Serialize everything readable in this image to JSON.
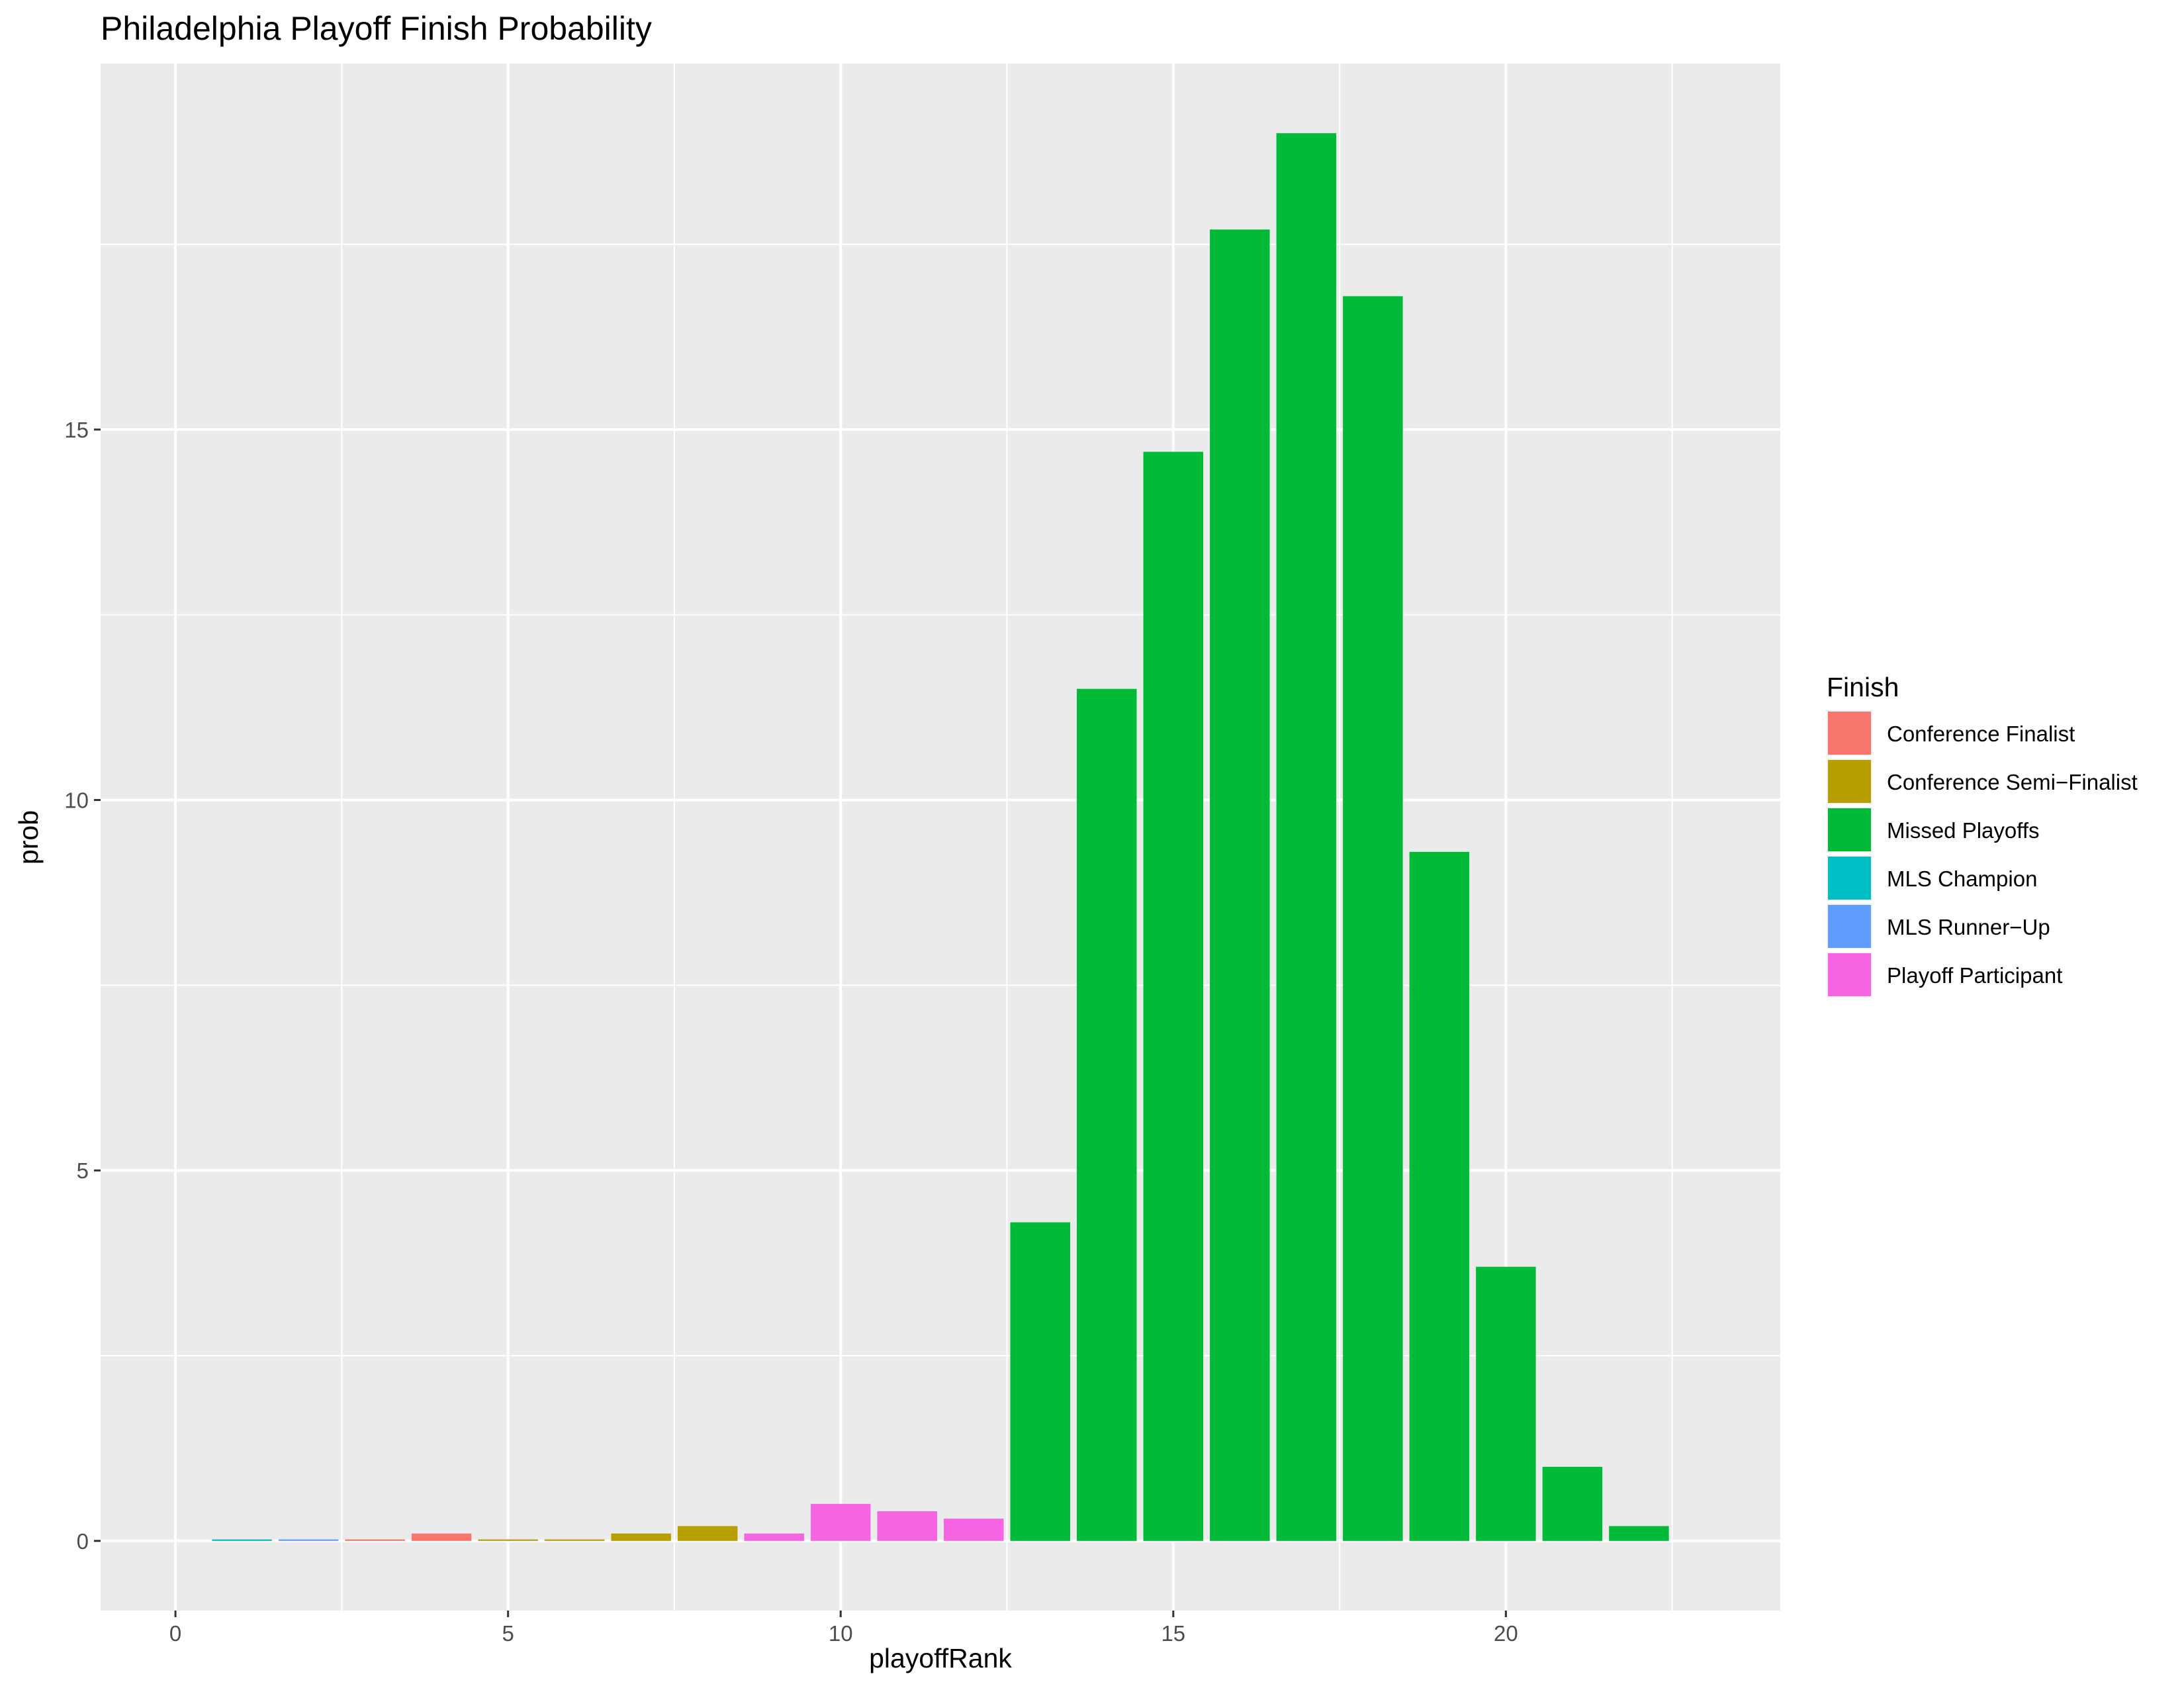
{
  "chart_data": {
    "type": "bar",
    "title": "Philadelphia Playoff Finish Probability",
    "xlabel": "playoffRank",
    "ylabel": "prob",
    "xlim": [
      -1.125,
      24.125
    ],
    "ylim": [
      -0.94,
      19.94
    ],
    "x_ticks": [
      0,
      5,
      10,
      15,
      20
    ],
    "y_ticks": [
      0,
      5,
      10,
      15
    ],
    "x_minor_ticks": [
      2.5,
      7.5,
      12.5,
      17.5,
      22.5
    ],
    "y_minor_ticks": [
      2.5,
      7.5,
      12.5,
      17.5
    ],
    "grid": true,
    "panel_background": "#ebebeb",
    "legend": {
      "title": "Finish",
      "placement": "right",
      "entries": [
        {
          "name": "Conference Finalist",
          "color": "#F8766D"
        },
        {
          "name": "Conference Semi−Finalist",
          "color": "#B79F00"
        },
        {
          "name": "Missed Playoffs",
          "color": "#00BA38"
        },
        {
          "name": "MLS Champion",
          "color": "#00BFC4"
        },
        {
          "name": "MLS Runner−Up",
          "color": "#619CFF"
        },
        {
          "name": "Playoff Participant",
          "color": "#F564E3"
        }
      ]
    },
    "bars": [
      {
        "x": 1,
        "value": 0.02,
        "series": "MLS Champion"
      },
      {
        "x": 2,
        "value": 0.02,
        "series": "MLS Runner−Up"
      },
      {
        "x": 3,
        "value": 0.02,
        "series": "Conference Finalist"
      },
      {
        "x": 4,
        "value": 0.1,
        "series": "Conference Finalist"
      },
      {
        "x": 5,
        "value": 0.02,
        "series": "Conference Semi−Finalist"
      },
      {
        "x": 6,
        "value": 0.02,
        "series": "Conference Semi−Finalist"
      },
      {
        "x": 7,
        "value": 0.1,
        "series": "Conference Semi−Finalist"
      },
      {
        "x": 8,
        "value": 0.2,
        "series": "Conference Semi−Finalist"
      },
      {
        "x": 9,
        "value": 0.1,
        "series": "Playoff Participant"
      },
      {
        "x": 10,
        "value": 0.5,
        "series": "Playoff Participant"
      },
      {
        "x": 11,
        "value": 0.4,
        "series": "Playoff Participant"
      },
      {
        "x": 12,
        "value": 0.3,
        "series": "Playoff Participant"
      },
      {
        "x": 13,
        "value": 4.3,
        "series": "Missed Playoffs"
      },
      {
        "x": 14,
        "value": 11.5,
        "series": "Missed Playoffs"
      },
      {
        "x": 15,
        "value": 14.7,
        "series": "Missed Playoffs"
      },
      {
        "x": 16,
        "value": 17.7,
        "series": "Missed Playoffs"
      },
      {
        "x": 17,
        "value": 19.0,
        "series": "Missed Playoffs"
      },
      {
        "x": 18,
        "value": 16.8,
        "series": "Missed Playoffs"
      },
      {
        "x": 19,
        "value": 9.3,
        "series": "Missed Playoffs"
      },
      {
        "x": 20,
        "value": 3.7,
        "series": "Missed Playoffs"
      },
      {
        "x": 21,
        "value": 1.0,
        "series": "Missed Playoffs"
      },
      {
        "x": 22,
        "value": 0.2,
        "series": "Missed Playoffs"
      }
    ]
  }
}
